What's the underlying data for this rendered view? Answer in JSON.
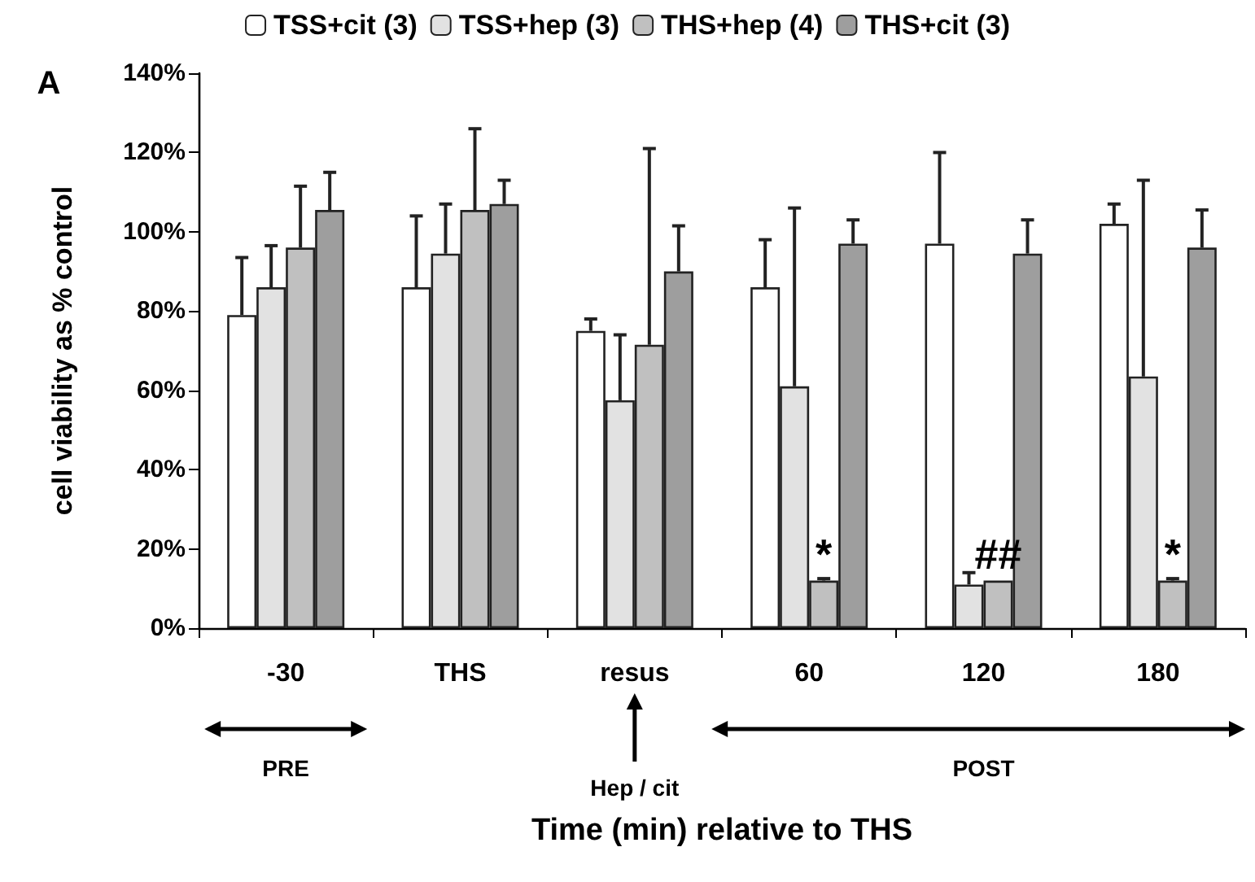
{
  "chart_data": {
    "type": "bar",
    "xlabel": "Time (min) relative to THS",
    "ylabel": "cell viability as % control",
    "categories": [
      "-30",
      "THS",
      "resus",
      "60",
      "120",
      "180"
    ],
    "series": [
      {
        "name": "TSS+cit (3)",
        "color": "#ffffff",
        "values": [
          79,
          86,
          75,
          86,
          97,
          102
        ],
        "errors": [
          [
            79,
            93.5
          ],
          [
            86,
            104
          ],
          [
            75,
            78
          ],
          [
            86,
            98
          ],
          [
            97,
            120
          ],
          [
            102,
            107
          ]
        ]
      },
      {
        "name": "TSS+hep (3)",
        "color": "#e2e2e2",
        "values": [
          86,
          94.5,
          57.5,
          61,
          11,
          63.5
        ],
        "errors": [
          [
            86,
            96.5
          ],
          [
            94.5,
            107
          ],
          [
            57.5,
            74
          ],
          [
            61,
            106
          ],
          [
            11,
            14
          ],
          [
            63.5,
            113
          ]
        ]
      },
      {
        "name": "THS+hep (4)",
        "color": "#c0c0c0",
        "values": [
          96,
          105.5,
          71.5,
          12,
          12,
          12
        ],
        "errors": [
          [
            96,
            111.5
          ],
          [
            105.5,
            126
          ],
          [
            71.5,
            121
          ],
          [
            12,
            12.5
          ],
          null,
          [
            12,
            12.5
          ]
        ]
      },
      {
        "name": "THS+cit (3)",
        "color": "#9e9e9e",
        "values": [
          105.5,
          107,
          90,
          97,
          94.5,
          96
        ],
        "errors": [
          [
            105.5,
            115
          ],
          [
            107,
            113
          ],
          [
            90,
            101.5
          ],
          [
            97,
            103
          ],
          [
            94.5,
            103
          ],
          [
            96,
            105.5
          ]
        ]
      }
    ],
    "ylim": [
      0,
      140
    ],
    "yticks": [
      {
        "value": 0,
        "label": "0%"
      },
      {
        "value": 20,
        "label": "20%"
      },
      {
        "value": 40,
        "label": "40%"
      },
      {
        "value": 60,
        "label": "60%"
      },
      {
        "value": 80,
        "label": "80%"
      },
      {
        "value": 100,
        "label": "100%"
      },
      {
        "value": 120,
        "label": "120%"
      },
      {
        "value": 140,
        "label": "140%"
      }
    ],
    "annotations": [
      {
        "text": "*",
        "x": "60",
        "y": 12
      },
      {
        "text": "##",
        "x": "120",
        "y": 12
      },
      {
        "text": "*",
        "x": "180",
        "y": 12
      },
      "A",
      "PRE",
      "Hep / cit",
      "POST"
    ],
    "legend": "top",
    "grid": false
  }
}
